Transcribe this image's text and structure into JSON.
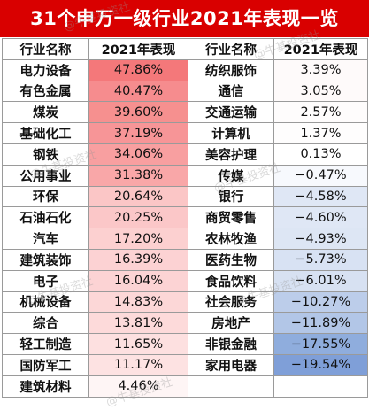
{
  "title": "31个申万一级行业2021年表现一览",
  "headers": [
    "行业名称",
    "2021年表现",
    "行业名称",
    "2021年表现"
  ],
  "left": [
    {
      "name": "电力设备",
      "value": "47.86%",
      "color": "#f4787a"
    },
    {
      "name": "有色金属",
      "value": "40.47%",
      "color": "#f68c8e"
    },
    {
      "name": "煤炭",
      "value": "39.60%",
      "color": "#f6908f"
    },
    {
      "name": "基础化工",
      "value": "37.19%",
      "color": "#f79597"
    },
    {
      "name": "钢铁",
      "value": "34.06%",
      "color": "#f89fa0"
    },
    {
      "name": "公用事业",
      "value": "31.38%",
      "color": "#f9a7a8"
    },
    {
      "name": "环保",
      "value": "20.64%",
      "color": "#fbc6c6"
    },
    {
      "name": "石油石化",
      "value": "20.25%",
      "color": "#fbc7c8"
    },
    {
      "name": "汽车",
      "value": "17.20%",
      "color": "#fcd0d0"
    },
    {
      "name": "建筑装饰",
      "value": "16.39%",
      "color": "#fcd2d3"
    },
    {
      "name": "电子",
      "value": "16.04%",
      "color": "#fcd3d4"
    },
    {
      "name": "机械设备",
      "value": "14.83%",
      "color": "#fcd7d7"
    },
    {
      "name": "综合",
      "value": "13.81%",
      "color": "#fddada"
    },
    {
      "name": "轻工制造",
      "value": "11.65%",
      "color": "#fde0e0"
    },
    {
      "name": "国防军工",
      "value": "11.17%",
      "color": "#fde2e2"
    },
    {
      "name": "建筑材料",
      "value": "4.46%",
      "color": "#fef5f5"
    }
  ],
  "right": [
    {
      "name": "纺织服饰",
      "value": "3.39%",
      "color": "#fefafa"
    },
    {
      "name": "通信",
      "value": "3.05%",
      "color": "#fefafa"
    },
    {
      "name": "交通运输",
      "value": "2.57%",
      "color": "#fefcfc"
    },
    {
      "name": "计算机",
      "value": "1.37%",
      "color": "#fefdfd"
    },
    {
      "name": "美容护理",
      "value": "0.13%",
      "color": "#ffffff"
    },
    {
      "name": "传媒",
      "value": "−0.47%",
      "color": "#f7f9fd"
    },
    {
      "name": "银行",
      "value": "−4.58%",
      "color": "#dfe7f5"
    },
    {
      "name": "商贸零售",
      "value": "−4.60%",
      "color": "#dfe7f5"
    },
    {
      "name": "农林牧渔",
      "value": "−4.93%",
      "color": "#dde6f4"
    },
    {
      "name": "医药生物",
      "value": "−5.73%",
      "color": "#d8e2f3"
    },
    {
      "name": "食品饮料",
      "value": "−6.01%",
      "color": "#d7e1f2"
    },
    {
      "name": "社会服务",
      "value": "−10.27%",
      "color": "#bccdea"
    },
    {
      "name": "房地产",
      "value": "−11.89%",
      "color": "#b2c6e7"
    },
    {
      "name": "非银金融",
      "value": "−17.55%",
      "color": "#8faddd"
    },
    {
      "name": "家用电器",
      "value": "−19.54%",
      "color": "#7f9fd8"
    },
    {
      "name": "",
      "value": "",
      "color": "#ffffff"
    }
  ],
  "watermark": "@牛基投资社"
}
